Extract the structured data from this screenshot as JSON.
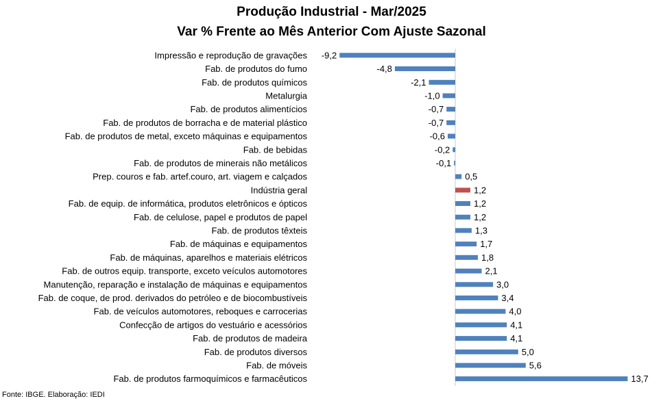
{
  "chart_data": {
    "type": "bar",
    "orientation": "horizontal",
    "title": "Produção Industrial - Mar/2025",
    "subtitle": "Var % Frente ao Mês Anterior Com Ajuste Sazonal",
    "xlabel": "",
    "ylabel": "",
    "grid": false,
    "legend": "none",
    "bar_color": "#4f81bd",
    "highlight_color": "#c0504d",
    "highlight_category": "Indústria geral",
    "xlim": [
      -10.5,
      14.5
    ],
    "categories": [
      "Impressão e reprodução de gravações",
      "Fab. de produtos do fumo",
      "Fab. de produtos químicos",
      "Metalurgia",
      "Fab. de produtos alimentícios",
      "Fab. de produtos de borracha e de material plástico",
      "Fab. de produtos de metal, exceto máquinas e equipamentos",
      "Fab. de bebidas",
      "Fab. de produtos de minerais não metálicos",
      "Prep. couros e fab. artef.couro, art. viagem e calçados",
      "Indústria geral",
      "Fab. de equip. de informática, produtos eletrônicos e ópticos",
      "Fab. de celulose, papel e produtos de papel",
      "Fab. de produtos têxteis",
      "Fab. de máquinas e equipamentos",
      "Fab. de máquinas, aparelhos e materiais elétricos",
      "Fab. de outros equip. transporte, exceto veículos automotores",
      "Manutenção, reparação e instalação de máquinas e equipamentos",
      "Fab. de coque, de prod. derivados do petróleo e de biocombustíveis",
      "Fab. de veículos automotores, reboques e carrocerias",
      "Confecção de artigos do vestuário e acessórios",
      "Fab. de produtos de madeira",
      "Fab. de produtos diversos",
      "Fab. de móveis",
      "Fab. de produtos farmoquímicos e farmacêuticos"
    ],
    "values": [
      -9.2,
      -4.8,
      -2.1,
      -1.0,
      -0.7,
      -0.7,
      -0.6,
      -0.2,
      -0.1,
      0.5,
      1.2,
      1.2,
      1.2,
      1.3,
      1.7,
      1.8,
      2.1,
      3.0,
      3.4,
      4.0,
      4.1,
      4.1,
      5.0,
      5.6,
      13.7
    ],
    "value_labels": [
      "-9,2",
      "-4,8",
      "-2,1",
      "-1,0",
      "-0,7",
      "-0,7",
      "-0,6",
      "-0,2",
      "-0,1",
      "0,5",
      "1,2",
      "1,2",
      "1,2",
      "1,3",
      "1,7",
      "1,8",
      "2,1",
      "3,0",
      "3,4",
      "4,0",
      "4,1",
      "4,1",
      "5,0",
      "5,6",
      "13,7"
    ]
  },
  "source": "Fonte: IBGE. Elaboração: IEDI"
}
